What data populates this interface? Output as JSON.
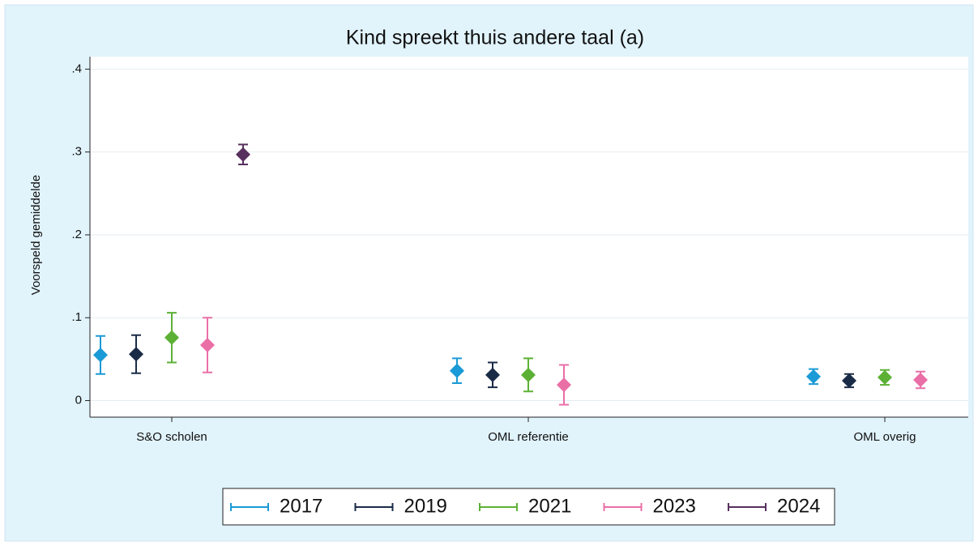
{
  "chart_data": {
    "type": "errorbar",
    "title": "Kind spreekt thuis andere taal (a)",
    "y_label": "Voorspeld gemiddelde",
    "categories": [
      "S&O scholen",
      "OML referentie",
      "OML overig"
    ],
    "series": [
      {
        "name": "2017",
        "color": "#1a9ad6",
        "values": [
          0.055,
          0.036,
          0.029
        ],
        "errors": [
          0.023,
          0.015,
          0.009
        ]
      },
      {
        "name": "2019",
        "color": "#1a2b47",
        "values": [
          0.056,
          0.031,
          0.024
        ],
        "errors": [
          0.023,
          0.015,
          0.008
        ]
      },
      {
        "name": "2021",
        "color": "#5cb135",
        "values": [
          0.076,
          0.031,
          0.028
        ],
        "errors": [
          0.03,
          0.02,
          0.009
        ]
      },
      {
        "name": "2023",
        "color": "#ea6fa7",
        "values": [
          0.067,
          0.019,
          0.025
        ],
        "errors": [
          0.033,
          0.024,
          0.01
        ]
      },
      {
        "name": "2024",
        "color": "#57305e",
        "values": [
          0.297,
          null,
          null
        ],
        "errors": [
          0.012,
          null,
          null
        ]
      }
    ],
    "ylim": [
      -0.02,
      0.415
    ],
    "yticks": [
      0,
      {
        "value": 0.1,
        "label": ".1"
      },
      {
        "value": 0.2,
        "label": ".2"
      },
      {
        "value": 0.3,
        "label": ".3"
      },
      {
        "value": 0.4,
        "label": ".4"
      }
    ],
    "grid": true,
    "legend": "bottom"
  }
}
